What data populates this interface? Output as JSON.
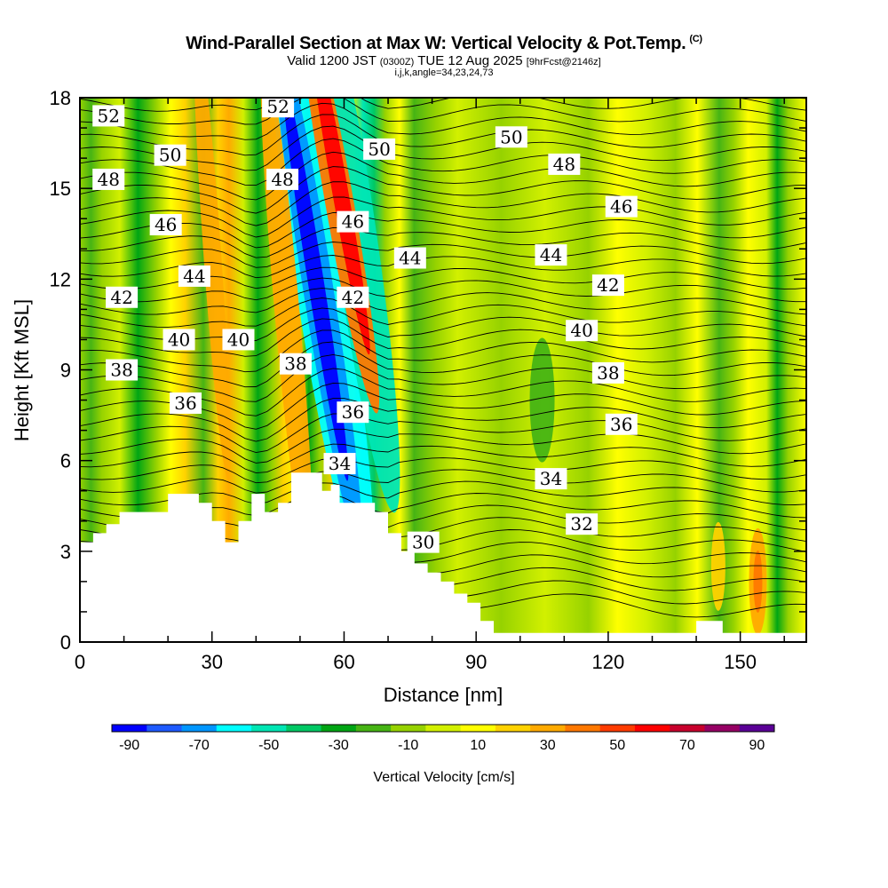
{
  "header": {
    "title": "Wind-Parallel Section at Max W: Vertical Velocity & Pot.Temp.",
    "copyright": "(C)",
    "valid_prefix": "Valid 1200 JST",
    "valid_utc": "(0300Z)",
    "valid_date": "TUE 12 Aug 2025",
    "forecast": "[9hrFcst@2146z]",
    "indices": "i,j,k,angle=34,23,24,73"
  },
  "chart_data": {
    "type": "heatmap",
    "xlabel": "Distance [nm]",
    "ylabel": "Height [Kft MSL]",
    "xlim": [
      0,
      165
    ],
    "ylim": [
      0,
      18
    ],
    "x_ticks": [
      0,
      30,
      60,
      90,
      120,
      150
    ],
    "y_ticks": [
      0,
      3,
      6,
      9,
      12,
      15,
      18
    ],
    "colorbar": {
      "label": "Vertical Velocity [cm/s]",
      "tick_labels": [
        "-90",
        "-70",
        "-50",
        "-30",
        "-10",
        "10",
        "30",
        "50",
        "70",
        "90"
      ],
      "colors": [
        "#0000ff",
        "#1e5aff",
        "#0096ff",
        "#00ffff",
        "#00e6b4",
        "#00c864",
        "#00a514",
        "#46b414",
        "#96d200",
        "#d2f000",
        "#ffff00",
        "#ffd200",
        "#ffaa00",
        "#ff7800",
        "#ff3c00",
        "#ff0000",
        "#c8002d",
        "#960064",
        "#5a0096"
      ]
    },
    "contour_labels": [
      {
        "text": "52",
        "x": 6.5,
        "y": 17.4
      },
      {
        "text": "52",
        "x": 45,
        "y": 17.7
      },
      {
        "text": "50",
        "x": 20.5,
        "y": 16.1
      },
      {
        "text": "50",
        "x": 68,
        "y": 16.3
      },
      {
        "text": "50",
        "x": 98,
        "y": 16.7
      },
      {
        "text": "48",
        "x": 6.5,
        "y": 15.3
      },
      {
        "text": "48",
        "x": 46,
        "y": 15.3
      },
      {
        "text": "48",
        "x": 110,
        "y": 15.8
      },
      {
        "text": "46",
        "x": 19.5,
        "y": 13.8
      },
      {
        "text": "46",
        "x": 62,
        "y": 13.9
      },
      {
        "text": "46",
        "x": 123,
        "y": 14.4
      },
      {
        "text": "44",
        "x": 26,
        "y": 12.1
      },
      {
        "text": "44",
        "x": 75,
        "y": 12.7
      },
      {
        "text": "44",
        "x": 107,
        "y": 12.8
      },
      {
        "text": "42",
        "x": 9.5,
        "y": 11.4
      },
      {
        "text": "42",
        "x": 62,
        "y": 11.4
      },
      {
        "text": "42",
        "x": 120,
        "y": 11.8
      },
      {
        "text": "40",
        "x": 22.5,
        "y": 10.0
      },
      {
        "text": "40",
        "x": 36,
        "y": 10.0
      },
      {
        "text": "40",
        "x": 114,
        "y": 10.3
      },
      {
        "text": "38",
        "x": 9.5,
        "y": 9.0
      },
      {
        "text": "38",
        "x": 49,
        "y": 9.2
      },
      {
        "text": "38",
        "x": 120,
        "y": 8.9
      },
      {
        "text": "36",
        "x": 24,
        "y": 7.9
      },
      {
        "text": "36",
        "x": 62,
        "y": 7.6
      },
      {
        "text": "36",
        "x": 123,
        "y": 7.2
      },
      {
        "text": "34",
        "x": 59,
        "y": 5.9
      },
      {
        "text": "34",
        "x": 107,
        "y": 5.4
      },
      {
        "text": "32",
        "x": 114,
        "y": 3.9
      },
      {
        "text": "30",
        "x": 78,
        "y": 3.3
      }
    ],
    "terrain": [
      [
        0,
        3.3
      ],
      [
        3,
        3.3
      ],
      [
        3,
        3.6
      ],
      [
        6,
        3.6
      ],
      [
        6,
        3.9
      ],
      [
        9,
        3.9
      ],
      [
        9,
        4.3
      ],
      [
        20,
        4.3
      ],
      [
        20,
        4.9
      ],
      [
        27,
        4.9
      ],
      [
        27,
        4.6
      ],
      [
        30,
        4.6
      ],
      [
        30,
        4.0
      ],
      [
        33,
        4.0
      ],
      [
        33,
        3.3
      ],
      [
        36,
        3.3
      ],
      [
        36,
        4.0
      ],
      [
        39,
        4.0
      ],
      [
        39,
        4.9
      ],
      [
        42,
        4.9
      ],
      [
        42,
        4.3
      ],
      [
        45,
        4.3
      ],
      [
        45,
        4.6
      ],
      [
        48,
        4.6
      ],
      [
        48,
        5.6
      ],
      [
        55,
        5.6
      ],
      [
        55,
        5.0
      ],
      [
        57,
        5.0
      ],
      [
        57,
        5.2
      ],
      [
        59,
        5.2
      ],
      [
        59,
        4.6
      ],
      [
        67,
        4.6
      ],
      [
        67,
        4.3
      ],
      [
        70,
        4.3
      ],
      [
        70,
        3.6
      ],
      [
        73,
        3.6
      ],
      [
        73,
        3.0
      ],
      [
        76,
        3.0
      ],
      [
        76,
        2.6
      ],
      [
        79,
        2.6
      ],
      [
        79,
        2.3
      ],
      [
        82,
        2.3
      ],
      [
        82,
        2.0
      ],
      [
        85,
        2.0
      ],
      [
        85,
        1.6
      ],
      [
        88,
        1.6
      ],
      [
        88,
        1.3
      ],
      [
        91,
        1.3
      ],
      [
        91,
        0.7
      ],
      [
        94,
        0.7
      ],
      [
        94,
        0.3
      ],
      [
        140,
        0.3
      ],
      [
        140,
        0.7
      ],
      [
        146,
        0.7
      ],
      [
        146,
        0.3
      ],
      [
        165,
        0.3
      ],
      [
        165,
        0
      ],
      [
        0,
        0
      ]
    ]
  }
}
